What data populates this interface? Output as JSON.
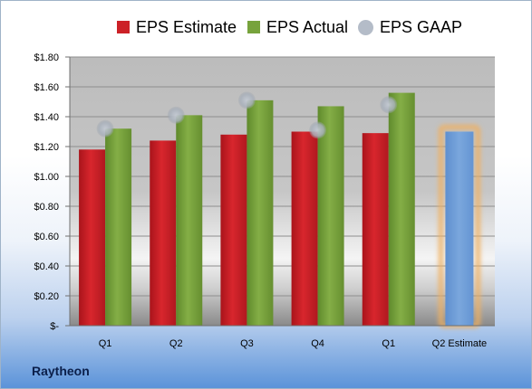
{
  "chart_data": {
    "type": "bar",
    "categories": [
      "Q1",
      "Q2",
      "Q3",
      "Q4",
      "Q1",
      "Q2 Estimate"
    ],
    "series": [
      {
        "name": "EPS Estimate",
        "color": "#cc2127",
        "values": [
          1.18,
          1.24,
          1.28,
          1.3,
          1.29,
          null
        ]
      },
      {
        "name": "EPS Actual",
        "color": "#77a33c",
        "values": [
          1.32,
          1.41,
          1.51,
          1.47,
          1.56,
          null
        ]
      },
      {
        "name": "EPS GAAP",
        "color": "#b4bcc8",
        "values": [
          1.32,
          1.41,
          1.51,
          1.31,
          1.48,
          null
        ]
      },
      {
        "name": "",
        "color": "#6f9fd8",
        "values": [
          null,
          null,
          null,
          null,
          null,
          1.3
        ]
      }
    ],
    "ylim": [
      0,
      1.8
    ],
    "yticks": [
      0,
      0.2,
      0.4,
      0.6,
      0.8,
      1.0,
      1.2,
      1.4,
      1.6,
      1.8
    ],
    "ytick_labels": [
      "$-",
      "$0.20",
      "$0.40",
      "$0.60",
      "$0.80",
      "$1.00",
      "$1.20",
      "$1.40",
      "$1.60",
      "$1.80"
    ],
    "grid": true,
    "legend": "top-center",
    "highlight_color": "#f0b060"
  },
  "company_label": "Raytheon"
}
